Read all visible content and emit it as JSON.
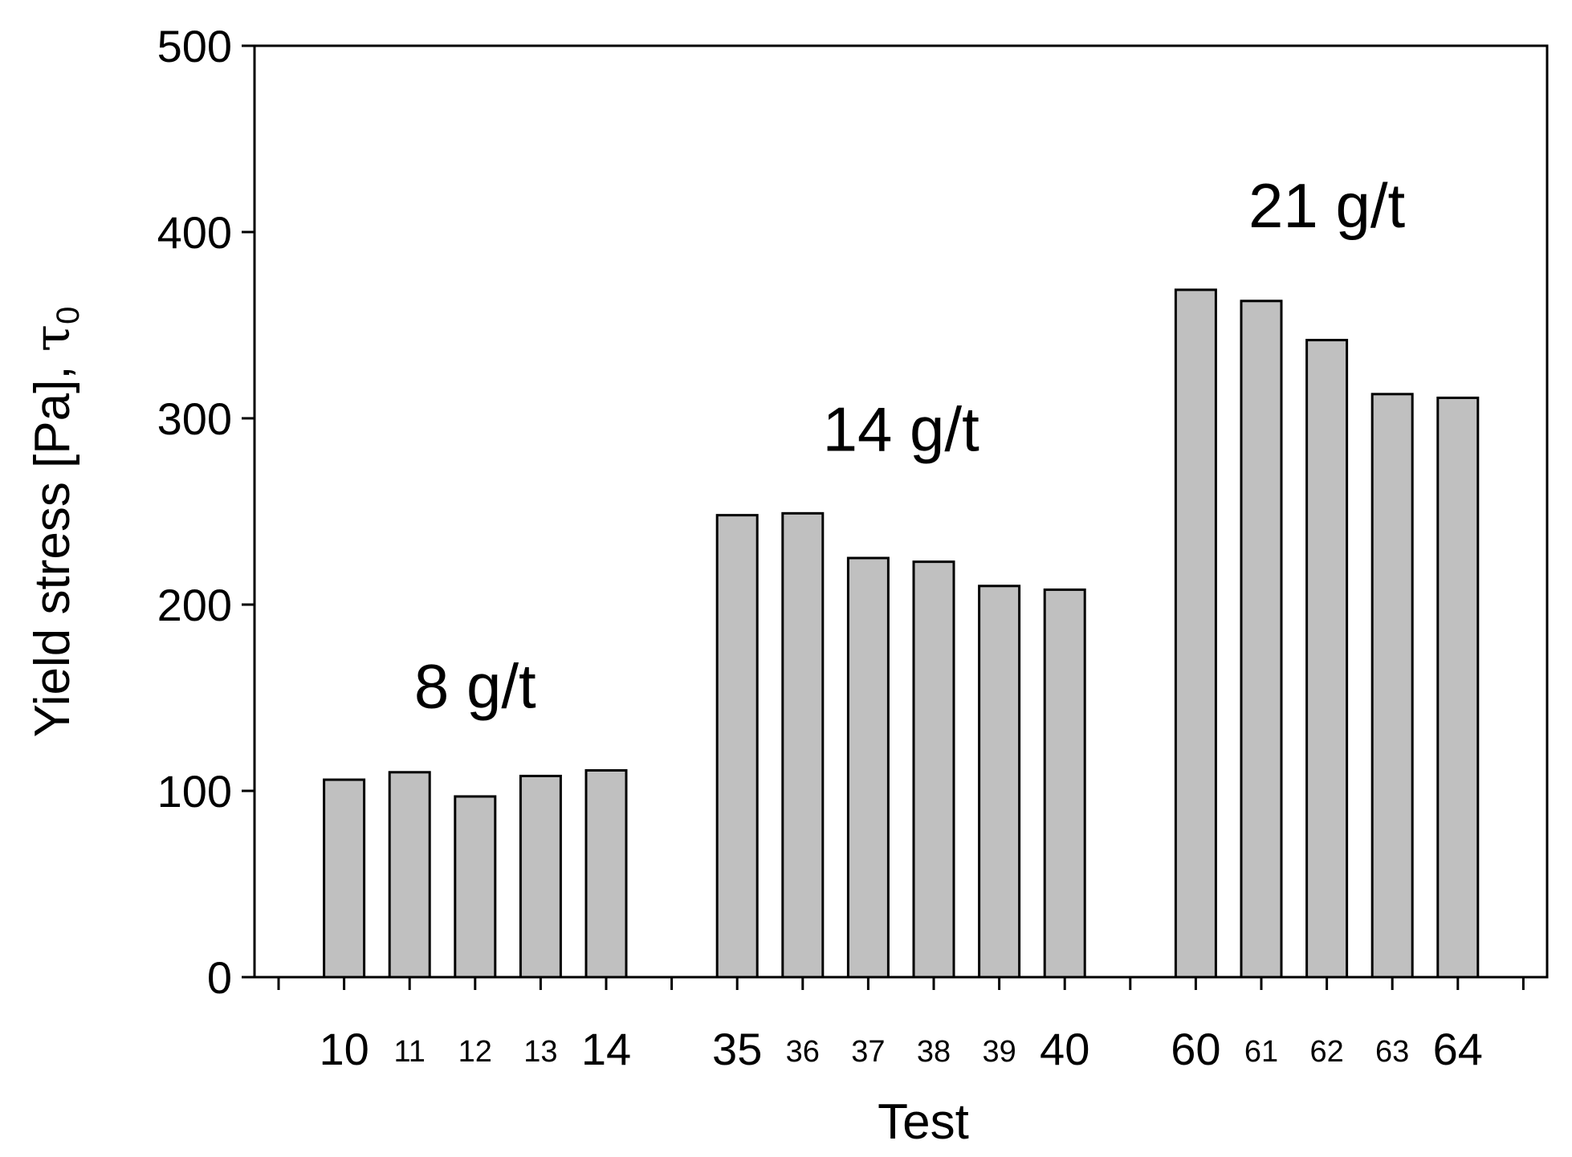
{
  "chart_data": {
    "type": "bar",
    "title": "",
    "xlabel": "Test",
    "ylabel": "Yield stress [Pa], ",
    "ylabel_symbol": "τ",
    "ylabel_subscript": "0",
    "ylim": [
      0,
      500
    ],
    "yticks": [
      "0",
      "100",
      "200",
      "300",
      "400",
      "500"
    ],
    "grid": false,
    "legend": "none",
    "colors": {
      "bar_fill": "#c0c0c0",
      "bar_stroke": "#000000",
      "axis": "#000000"
    },
    "categories": [
      "10",
      "11",
      "12",
      "13",
      "14",
      "35",
      "36",
      "37",
      "38",
      "39",
      "40",
      "60",
      "61",
      "62",
      "63",
      "64"
    ],
    "values": [
      106,
      110,
      97,
      108,
      111,
      248,
      249,
      225,
      223,
      210,
      208,
      369,
      363,
      342,
      313,
      311
    ],
    "groups": [
      {
        "label": "8 g/t",
        "tests": [
          "10",
          "11",
          "12",
          "13",
          "14"
        ]
      },
      {
        "label": "14 g/t",
        "tests": [
          "35",
          "36",
          "37",
          "38",
          "39",
          "40"
        ]
      },
      {
        "label": "21 g/t",
        "tests": [
          "60",
          "61",
          "62",
          "63",
          "64"
        ]
      }
    ],
    "large_labels": [
      "10",
      "14",
      "35",
      "40",
      "60",
      "64"
    ]
  }
}
